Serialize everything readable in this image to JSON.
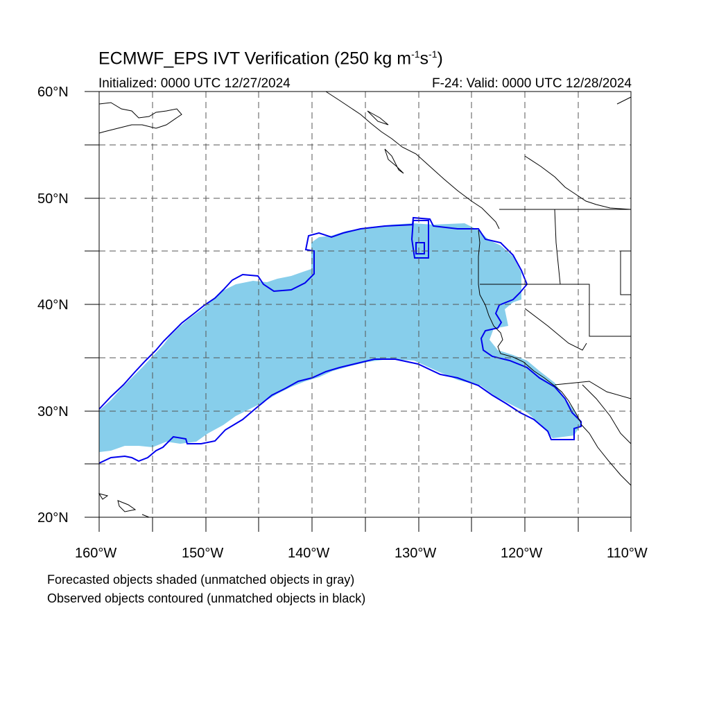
{
  "map": {
    "title_main": "ECMWF_EPS IVT Verification (250 kg m",
    "title_exp1": "-1",
    "title_mid": "s",
    "title_exp2": "-1",
    "title_end": ")",
    "initialized": "Initialized: 0000 UTC 12/27/2024",
    "valid": "F-24: Valid: 0000 UTC 12/28/2024",
    "lat_labels": [
      "60°N",
      "50°N",
      "40°N",
      "30°N",
      "20°N"
    ],
    "lon_labels": [
      "160°W",
      "150°W",
      "140°W",
      "130°W",
      "120°W",
      "110°W"
    ],
    "note_forecast": "Forecasted objects shaded (unmatched objects in gray)",
    "note_observed": "Observed objects contoured (unmatched objects in black)",
    "extent": {
      "lon_min": -160,
      "lon_max": -110,
      "lat_min": 20,
      "lat_max": 60
    },
    "colors": {
      "forecast_fill": "#87ceeb",
      "observed_contour": "#0000ee",
      "coastline": "#000000",
      "grid": "#555555"
    }
  }
}
